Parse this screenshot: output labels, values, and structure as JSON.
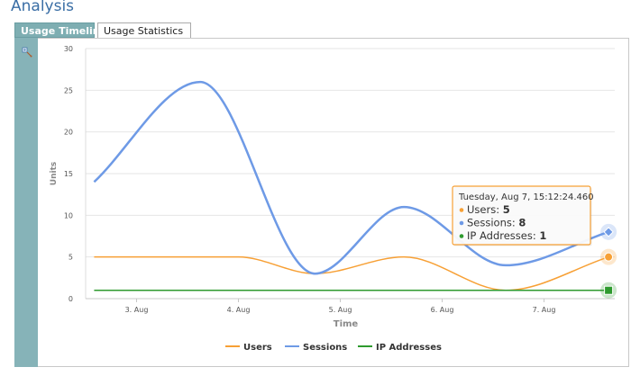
{
  "page": {
    "title": "Analysis"
  },
  "tabs": [
    {
      "label": "Usage Timeline",
      "active": true
    },
    {
      "label": "Usage Statistics",
      "active": false
    }
  ],
  "toolbar": {
    "icon": "chart-settings-icon"
  },
  "tooltip": {
    "date": "Tuesday, Aug 7, 15:12:24.460",
    "rows": [
      {
        "label": "Users:",
        "value": "5",
        "color": "#f7a035"
      },
      {
        "label": "Sessions:",
        "value": "8",
        "color": "#6e9ae6"
      },
      {
        "label": "IP Addresses:",
        "value": "1",
        "color": "#2e9a2e"
      }
    ]
  },
  "chart_data": {
    "type": "line",
    "xlabel": "Time",
    "ylabel": "Units",
    "ylim": [
      0,
      30
    ],
    "yticks": [
      "0",
      "5",
      "10",
      "15",
      "20",
      "25",
      "30"
    ],
    "xticks": [
      "3. Aug",
      "4. Aug",
      "5. Aug",
      "6. Aug",
      "7. Aug"
    ],
    "grid": true,
    "legend": "bottom",
    "series": [
      {
        "name": "Users",
        "color": "#f7a035",
        "x": [
          "2018-08-02T14:00",
          "2018-08-03T15:00",
          "2018-08-04T00:00",
          "2018-08-04T18:00",
          "2018-08-05T15:00",
          "2018-08-06T15:00",
          "2018-08-07T15:12"
        ],
        "y": [
          5,
          5,
          5,
          3,
          5,
          1,
          5
        ]
      },
      {
        "name": "Sessions",
        "color": "#6e9ae6",
        "x": [
          "2018-08-02T14:00",
          "2018-08-03T15:00",
          "2018-08-04T18:00",
          "2018-08-05T15:00",
          "2018-08-06T15:00",
          "2018-08-07T15:12"
        ],
        "y": [
          14,
          26,
          3,
          11,
          4,
          8
        ]
      },
      {
        "name": "IP Addresses",
        "color": "#2e9a2e",
        "x": [
          "2018-08-02T14:00",
          "2018-08-07T15:12"
        ],
        "y": [
          1,
          1
        ]
      }
    ]
  }
}
